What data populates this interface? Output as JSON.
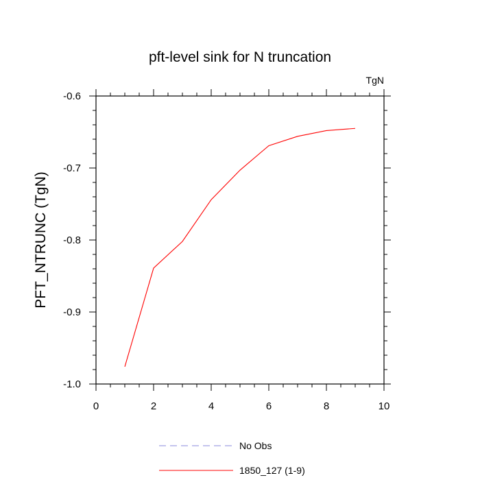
{
  "chart_data": {
    "type": "line",
    "title": "pft-level sink for N truncation",
    "units_label": "TgN",
    "xlabel": "",
    "ylabel": "PFT_NTRUNC  (TgN)",
    "xlim": [
      0,
      10
    ],
    "ylim": [
      -1.0,
      -0.6
    ],
    "x_ticks": [
      "0",
      "2",
      "4",
      "6",
      "8",
      "10"
    ],
    "y_ticks": [
      "-0.6",
      "-0.7",
      "-0.8",
      "-0.9",
      "-1.0"
    ],
    "grid": false,
    "legend_position": "bottom",
    "series": [
      {
        "name": "No Obs",
        "color": "#8888dd",
        "dash": "dashed",
        "x": [],
        "y": []
      },
      {
        "name": "1850_127 (1-9)",
        "color": "#ff0000",
        "dash": "solid",
        "x": [
          1,
          2,
          3,
          4,
          5,
          6,
          7,
          8,
          9
        ],
        "y": [
          -0.976,
          -0.839,
          -0.802,
          -0.744,
          -0.703,
          -0.669,
          -0.656,
          -0.648,
          -0.645
        ]
      }
    ]
  }
}
